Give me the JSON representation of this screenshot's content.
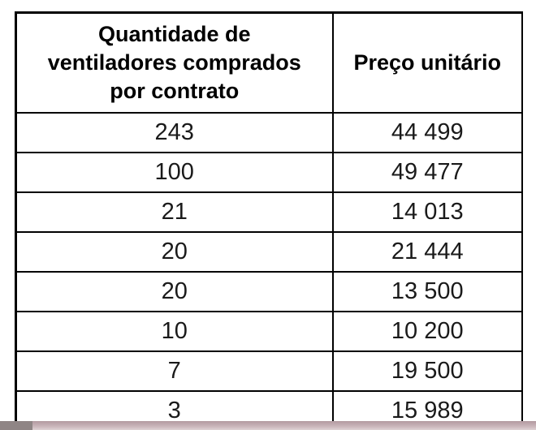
{
  "table": {
    "headers": [
      [
        "Quantidade de",
        "ventiladores comprados",
        "por contrato"
      ],
      [
        "Preço unitário"
      ]
    ],
    "rows": [
      [
        "243",
        "44 499"
      ],
      [
        "100",
        "49 477"
      ],
      [
        "21",
        "14 013"
      ],
      [
        "20",
        "21 444"
      ],
      [
        "20",
        "13 500"
      ],
      [
        "10",
        "10 200"
      ],
      [
        "7",
        "19 500"
      ],
      [
        "3",
        "15 989"
      ]
    ]
  },
  "colors": {
    "border": "#000000",
    "background": "#ffffff",
    "bottom_band": "#c8b3b8"
  }
}
